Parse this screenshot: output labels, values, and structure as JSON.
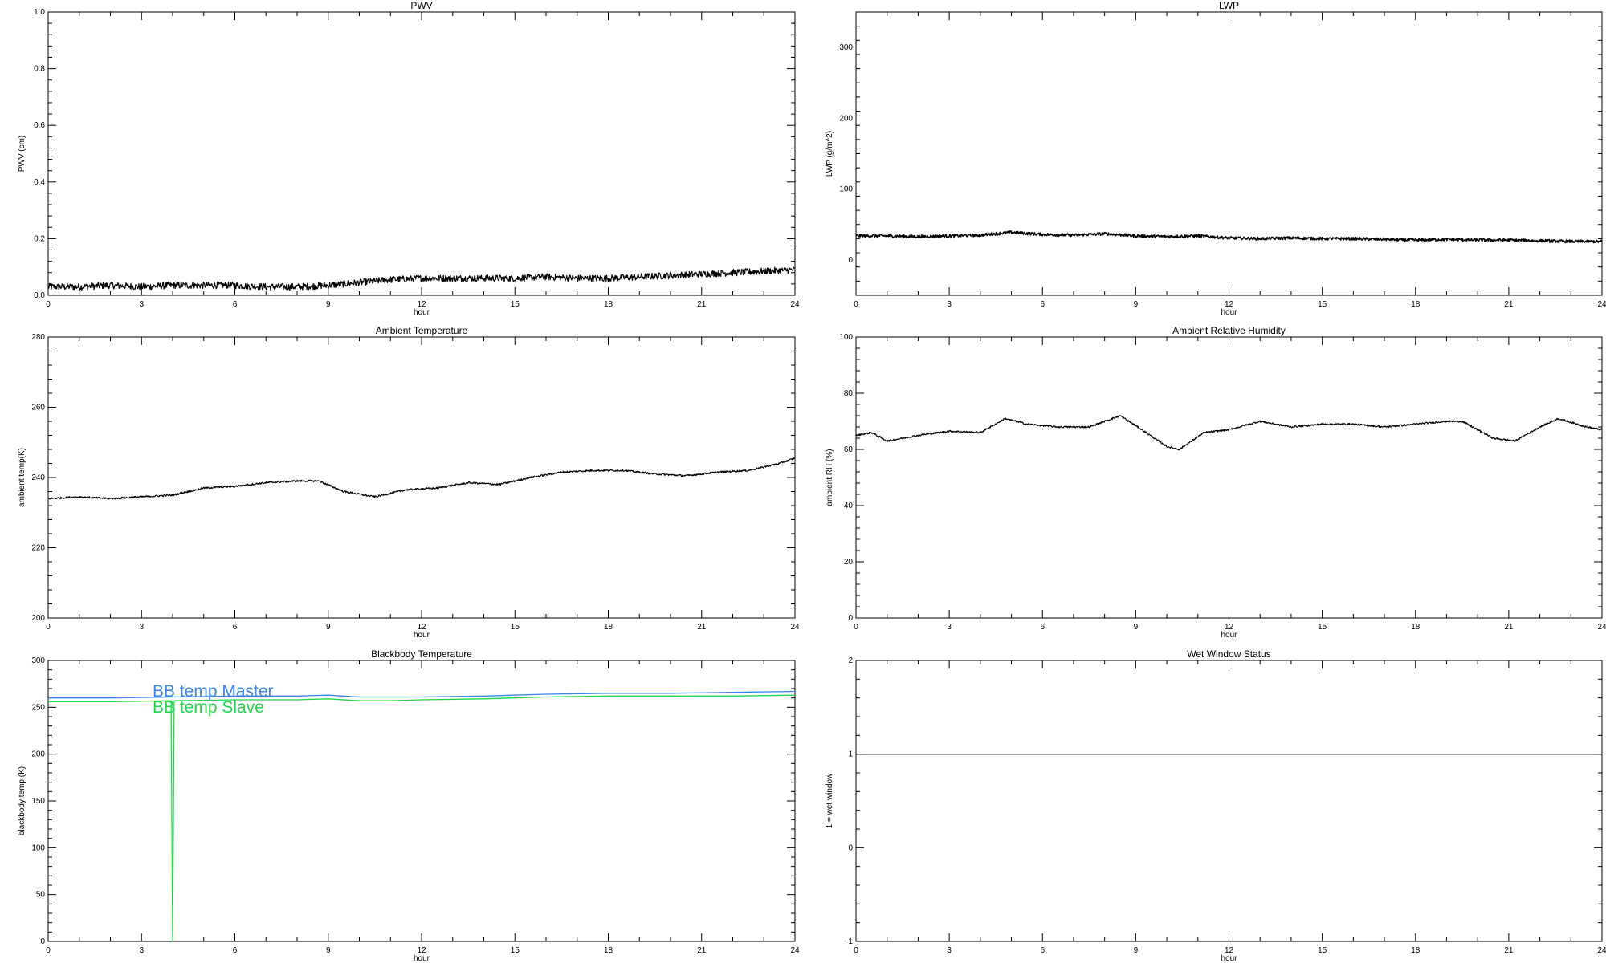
{
  "chart_data": [
    {
      "id": "pwv",
      "type": "line",
      "title": "PWV",
      "xlabel": "hour",
      "ylabel": "PWV (cm)",
      "xlim": [
        0,
        24
      ],
      "ylim": [
        0,
        1
      ],
      "xticks": [
        0,
        3,
        6,
        9,
        12,
        15,
        18,
        21,
        24
      ],
      "xtick_labels": [
        "0",
        "3",
        "6",
        "9",
        "12",
        "15",
        "18",
        "21",
        "24"
      ],
      "yticks": [
        0,
        0.2,
        0.4,
        0.6,
        0.8,
        1.0
      ],
      "ytick_labels": [
        "0.0",
        "0.2",
        "0.4",
        "0.6",
        "0.8",
        "1.0"
      ],
      "noise": 0.012,
      "grid": false,
      "series": [
        {
          "color": "#000000",
          "x": [
            0,
            1,
            2,
            3,
            4,
            5,
            6,
            7,
            8,
            9,
            10,
            11,
            12,
            13,
            14,
            15,
            16,
            17,
            18,
            19,
            20,
            21,
            22,
            23,
            24
          ],
          "values": [
            0.03,
            0.03,
            0.035,
            0.03,
            0.035,
            0.035,
            0.035,
            0.03,
            0.03,
            0.035,
            0.045,
            0.055,
            0.06,
            0.06,
            0.06,
            0.06,
            0.065,
            0.06,
            0.06,
            0.065,
            0.07,
            0.075,
            0.08,
            0.085,
            0.09
          ]
        }
      ]
    },
    {
      "id": "lwp",
      "type": "line",
      "title": "LWP",
      "xlabel": "hour",
      "ylabel": "LWP (g/m^2)",
      "xlim": [
        0,
        24
      ],
      "ylim": [
        -50,
        350
      ],
      "xticks": [
        0,
        3,
        6,
        9,
        12,
        15,
        18,
        21,
        24
      ],
      "xtick_labels": [
        "0",
        "3",
        "6",
        "9",
        "12",
        "15",
        "18",
        "21",
        "24"
      ],
      "yticks": [
        0,
        100,
        200,
        300
      ],
      "ytick_labels": [
        "0",
        "100",
        "200",
        "300"
      ],
      "noise": 2.0,
      "grid": false,
      "series": [
        {
          "color": "#000000",
          "x": [
            0,
            1,
            2,
            3,
            4,
            5,
            6,
            7,
            8,
            9,
            10,
            11,
            12,
            13,
            14,
            15,
            16,
            17,
            18,
            19,
            20,
            21,
            22,
            23,
            24
          ],
          "values": [
            34,
            34,
            33,
            34,
            35,
            39,
            36,
            35,
            37,
            34,
            33,
            34,
            31,
            30,
            31,
            30,
            30,
            29,
            28,
            29,
            28,
            28,
            27,
            26,
            26
          ]
        }
      ]
    },
    {
      "id": "ambient-temperature",
      "type": "line",
      "title": "Ambient Temperature",
      "xlabel": "hour",
      "ylabel": "ambient temp(K)",
      "xlim": [
        0,
        24
      ],
      "ylim": [
        200,
        280
      ],
      "xticks": [
        0,
        3,
        6,
        9,
        12,
        15,
        18,
        21,
        24
      ],
      "xtick_labels": [
        "0",
        "3",
        "6",
        "9",
        "12",
        "15",
        "18",
        "21",
        "24"
      ],
      "yticks": [
        200,
        220,
        240,
        260,
        280
      ],
      "ytick_labels": [
        "200",
        "220",
        "240",
        "260",
        "280"
      ],
      "noise": 0.25,
      "grid": false,
      "series": [
        {
          "color": "#000000",
          "x": [
            0,
            1,
            2,
            3,
            4,
            5,
            6,
            7,
            8,
            8.7,
            9.5,
            10.5,
            11.5,
            12.5,
            13.5,
            14.5,
            15.5,
            16.5,
            17.5,
            18.5,
            19.5,
            20.5,
            21.5,
            22.5,
            23.5,
            24
          ],
          "values": [
            234,
            234.5,
            234,
            234.5,
            235,
            237,
            237.5,
            238.5,
            239,
            239,
            236,
            234.5,
            236.5,
            237,
            238.5,
            238,
            240,
            241.5,
            242,
            242,
            241,
            240.5,
            241.5,
            242,
            244,
            245.5
          ]
        }
      ]
    },
    {
      "id": "ambient-relative-humidity",
      "type": "line",
      "title": "Ambient Relative Humidity",
      "xlabel": "hour",
      "ylabel": "ambient RH (%)",
      "xlim": [
        0,
        24
      ],
      "ylim": [
        0,
        100
      ],
      "xticks": [
        0,
        3,
        6,
        9,
        12,
        15,
        18,
        21,
        24
      ],
      "xtick_labels": [
        "0",
        "3",
        "6",
        "9",
        "12",
        "15",
        "18",
        "21",
        "24"
      ],
      "yticks": [
        0,
        20,
        40,
        60,
        80,
        100
      ],
      "ytick_labels": [
        "0",
        "20",
        "40",
        "60",
        "80",
        "100"
      ],
      "noise": 0.3,
      "grid": false,
      "series": [
        {
          "color": "#000000",
          "x": [
            0,
            0.5,
            1,
            2,
            3,
            4,
            4.8,
            5.5,
            6.5,
            7.5,
            8.5,
            9.2,
            10,
            10.4,
            11.2,
            12,
            13,
            14,
            15,
            16,
            17,
            18,
            19,
            19.5,
            20.5,
            21.2,
            22,
            22.6,
            23.5,
            24
          ],
          "values": [
            65,
            66,
            63,
            65,
            66.5,
            66,
            71,
            69,
            68,
            68,
            72,
            67,
            61,
            60,
            66,
            67,
            70,
            68,
            69,
            69,
            68,
            69,
            70,
            70,
            64,
            63,
            68,
            71,
            68,
            67
          ]
        }
      ]
    },
    {
      "id": "blackbody-temperature",
      "type": "line",
      "title": "Blackbody Temperature",
      "xlabel": "hour",
      "ylabel": "blackbody temp (K)",
      "xlim": [
        0,
        24
      ],
      "ylim": [
        0,
        300
      ],
      "xticks": [
        0,
        3,
        6,
        9,
        12,
        15,
        18,
        21,
        24
      ],
      "xtick_labels": [
        "0",
        "3",
        "6",
        "9",
        "12",
        "15",
        "18",
        "21",
        "24"
      ],
      "yticks": [
        0,
        50,
        100,
        150,
        200,
        250,
        300
      ],
      "ytick_labels": [
        "0",
        "50",
        "100",
        "150",
        "200",
        "250",
        "300"
      ],
      "noise": 0,
      "grid": false,
      "legend": {
        "placement": "top-left",
        "entries": [
          {
            "label": "BB temp Master",
            "color": "#3a86e8"
          },
          {
            "label": "BB temp Slave",
            "color": "#22d64a"
          }
        ]
      },
      "series": [
        {
          "name": "BB temp Master",
          "color": "#3a86e8",
          "x": [
            0,
            2,
            4,
            6,
            8,
            9,
            10,
            11,
            12,
            14,
            16,
            18,
            20,
            22,
            24
          ],
          "values": [
            260,
            260,
            261,
            262,
            262,
            263,
            261,
            261,
            261,
            262,
            264,
            265,
            265,
            266,
            267
          ]
        },
        {
          "name": "BB temp Slave",
          "color": "#22d64a",
          "x": [
            0,
            2,
            3.95,
            4.0,
            4.05,
            6,
            8,
            9,
            10,
            11,
            12,
            14,
            16,
            18,
            20,
            22,
            24
          ],
          "values": [
            256,
            256,
            257,
            0,
            257,
            258,
            258,
            259,
            257,
            257,
            258,
            259,
            261,
            262,
            262,
            262,
            263
          ]
        }
      ]
    },
    {
      "id": "wet-window-status",
      "type": "line",
      "title": "Wet Window Status",
      "xlabel": "hour",
      "ylabel": "1 = wet window",
      "xlim": [
        0,
        24
      ],
      "ylim": [
        -1,
        2
      ],
      "xticks": [
        0,
        3,
        6,
        9,
        12,
        15,
        18,
        21,
        24
      ],
      "xtick_labels": [
        "0",
        "3",
        "6",
        "9",
        "12",
        "15",
        "18",
        "21",
        "24"
      ],
      "yticks": [
        -1,
        0,
        1,
        2
      ],
      "ytick_labels": [
        "−1",
        "0",
        "1",
        "2"
      ],
      "noise": 0,
      "grid": false,
      "series": [
        {
          "color": "#000000",
          "x": [
            0,
            24
          ],
          "values": [
            1,
            1
          ]
        }
      ]
    }
  ]
}
